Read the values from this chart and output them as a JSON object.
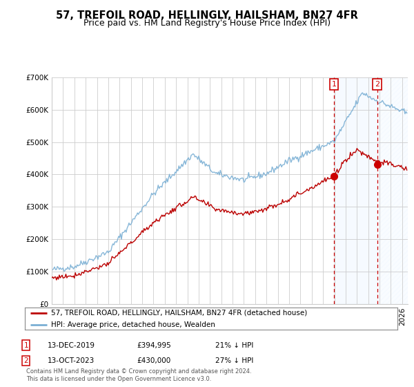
{
  "title": "57, TREFOIL ROAD, HELLINGLY, HAILSHAM, BN27 4FR",
  "subtitle": "Price paid vs. HM Land Registry's House Price Index (HPI)",
  "legend_label_red": "57, TREFOIL ROAD, HELLINGLY, HAILSHAM, BN27 4FR (detached house)",
  "legend_label_blue": "HPI: Average price, detached house, Wealden",
  "annotation1_date": "13-DEC-2019",
  "annotation1_price": "£394,995",
  "annotation1_pct": "21% ↓ HPI",
  "annotation2_date": "13-OCT-2023",
  "annotation2_price": "£430,000",
  "annotation2_pct": "27% ↓ HPI",
  "footer": "Contains HM Land Registry data © Crown copyright and database right 2024.\nThis data is licensed under the Open Government Licence v3.0.",
  "ylim": [
    0,
    700000
  ],
  "yticks": [
    0,
    100000,
    200000,
    300000,
    400000,
    500000,
    600000,
    700000
  ],
  "ytick_labels": [
    "£0",
    "£100K",
    "£200K",
    "£300K",
    "£400K",
    "£500K",
    "£600K",
    "£700K"
  ],
  "red_color": "#bb0000",
  "blue_color": "#7aafd4",
  "annotation_color": "#cc0000",
  "background_color": "#ffffff",
  "grid_color": "#cccccc",
  "shade_color": "#ddeeff",
  "title_fontsize": 10.5,
  "subtitle_fontsize": 9,
  "axis_fontsize": 7.5,
  "sale1_year": 2019.958,
  "sale1_price": 394995,
  "sale2_year": 2023.792,
  "sale2_price": 430000,
  "xlim_start": 1995,
  "xlim_end": 2026.5
}
